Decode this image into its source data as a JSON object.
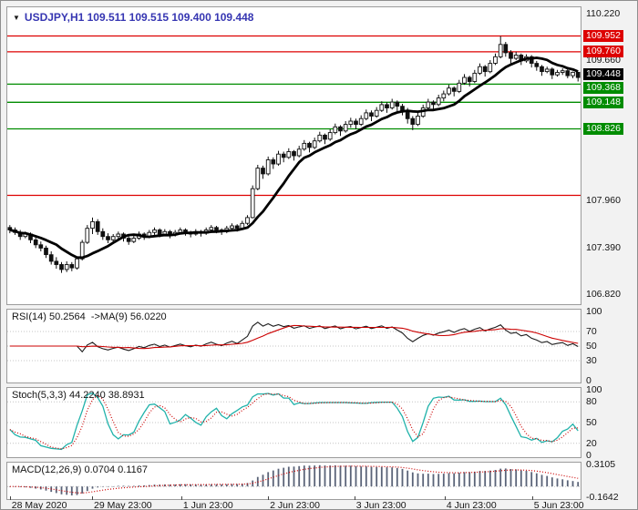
{
  "window": {
    "bg": "#f2f2f2",
    "panel_bg": "#ffffff",
    "panel_border": "#9c9c9c"
  },
  "colors": {
    "resistance": "#dd0000",
    "support": "#008c00",
    "last_price_bg": "#000000",
    "candle": "#101010",
    "ma_line": "#000000",
    "rsi_line": "#1c1c1c",
    "rsi_ma_line": "#cc0000",
    "stoch_k_line": "#20b2aa",
    "stoch_d_line": "#cc0000",
    "macd_hist": "#5a6378",
    "macd_signal": "#cc0000",
    "header_text": "#3636b2",
    "axis_text": "#141414"
  },
  "header": {
    "dropdown_icon": "▼",
    "symbol_line": "USDJPY,H1 109.511 109.515 109.400 109.448"
  },
  "main_chart": {
    "ylim": [
      106.7,
      110.3
    ],
    "plain_labels": [
      {
        "text": "110.220",
        "price": 110.22
      },
      {
        "text": "109.660",
        "price": 109.66
      },
      {
        "text": "107.960",
        "price": 107.96
      },
      {
        "text": "107.390",
        "price": 107.39
      },
      {
        "text": "106.820",
        "price": 106.82
      }
    ],
    "badges": [
      {
        "text": "109.952",
        "price": 109.952,
        "kind": "resistance"
      },
      {
        "text": "109.760",
        "price": 109.76,
        "kind": "resistance"
      },
      {
        "text": "109.448",
        "price": 109.448,
        "kind": "last",
        "dy": -4
      },
      {
        "text": "109.368",
        "price": 109.368,
        "kind": "support",
        "dy": 4
      },
      {
        "text": "109.148",
        "price": 109.148,
        "kind": "support"
      },
      {
        "text": "108.826",
        "price": 108.826,
        "kind": "support"
      }
    ],
    "levels": {
      "resistance": [
        109.952,
        109.76,
        108.02
      ],
      "support": [
        109.368,
        109.148,
        108.826
      ]
    }
  },
  "indicators": {
    "rsi": {
      "label": "RSI(14) 50.2564  ->MA(9) 56.0220",
      "period": 14,
      "ma_period": 9,
      "current": 50.2564,
      "ma_current": 56.022,
      "ticks": [
        100,
        70,
        50,
        30,
        0
      ],
      "grid": [
        70,
        50,
        30
      ],
      "ylim": [
        0,
        100
      ]
    },
    "stoch": {
      "label": "Stoch(5,3,3) 44.2240 38.8931",
      "k_current": 44.224,
      "d_current": 38.8931,
      "ticks": [
        100,
        80,
        50,
        20,
        0
      ],
      "grid": [
        80,
        50,
        20
      ],
      "ylim": [
        0,
        100
      ]
    },
    "macd": {
      "label": "MACD(12,26,9) 0.0704 0.1167",
      "macd_current": 0.0704,
      "signal_current": 0.1167,
      "ticks": [
        0.3105,
        -0.1642
      ],
      "tick_labels": [
        "0.3105",
        "-0.1642"
      ],
      "ylim": [
        -0.1642,
        0.3105
      ]
    }
  },
  "time_axis": {
    "labels": [
      {
        "text": "28 May 2020",
        "pos": 0.006
      },
      {
        "text": "29 May 23:00",
        "pos": 0.149
      },
      {
        "text": "1 Jun 23:00",
        "pos": 0.304
      },
      {
        "text": "2 Jun 23:00",
        "pos": 0.455
      },
      {
        "text": "3 Jun 23:00",
        "pos": 0.605
      },
      {
        "text": "4 Jun 23:00",
        "pos": 0.762
      },
      {
        "text": "5 Jun 23:00",
        "pos": 0.914
      }
    ]
  },
  "chart_data": [
    {
      "type": "candlestick",
      "title": "USDJPY,H1",
      "ylim": [
        106.7,
        110.3
      ],
      "ohlc": [
        [
          107.63,
          107.66,
          107.56,
          107.6
        ],
        [
          107.6,
          107.63,
          107.54,
          107.57
        ],
        [
          107.57,
          107.6,
          107.48,
          107.52
        ],
        [
          107.52,
          107.58,
          107.5,
          107.55
        ],
        [
          107.55,
          107.57,
          107.44,
          107.48
        ],
        [
          107.48,
          107.51,
          107.38,
          107.42
        ],
        [
          107.42,
          107.46,
          107.34,
          107.38
        ],
        [
          107.38,
          107.41,
          107.26,
          107.3
        ],
        [
          107.3,
          107.34,
          107.18,
          107.22
        ],
        [
          107.22,
          107.27,
          107.13,
          107.18
        ],
        [
          107.18,
          107.21,
          107.08,
          107.12
        ],
        [
          107.12,
          107.22,
          107.09,
          107.18
        ],
        [
          107.18,
          107.21,
          107.1,
          107.14
        ],
        [
          107.14,
          107.28,
          107.12,
          107.25
        ],
        [
          107.25,
          107.48,
          107.23,
          107.45
        ],
        [
          107.45,
          107.66,
          107.43,
          107.62
        ],
        [
          107.62,
          107.75,
          107.55,
          107.7
        ],
        [
          107.7,
          107.73,
          107.54,
          107.58
        ],
        [
          107.58,
          107.62,
          107.48,
          107.52
        ],
        [
          107.52,
          107.56,
          107.44,
          107.48
        ],
        [
          107.48,
          107.55,
          107.45,
          107.52
        ],
        [
          107.52,
          107.58,
          107.49,
          107.55
        ],
        [
          107.55,
          107.57,
          107.46,
          107.5
        ],
        [
          107.5,
          107.53,
          107.42,
          107.46
        ],
        [
          107.46,
          107.53,
          107.44,
          107.5
        ],
        [
          107.5,
          107.58,
          107.48,
          107.55
        ],
        [
          107.55,
          107.57,
          107.48,
          107.52
        ],
        [
          107.52,
          107.6,
          107.5,
          107.57
        ],
        [
          107.57,
          107.63,
          107.54,
          107.6
        ],
        [
          107.6,
          107.62,
          107.51,
          107.55
        ],
        [
          107.55,
          107.61,
          107.53,
          107.58
        ],
        [
          107.58,
          107.6,
          107.5,
          107.54
        ],
        [
          107.54,
          107.6,
          107.52,
          107.57
        ],
        [
          107.57,
          107.63,
          107.55,
          107.6
        ],
        [
          107.6,
          107.62,
          107.53,
          107.57
        ],
        [
          107.57,
          107.59,
          107.51,
          107.55
        ],
        [
          107.55,
          107.61,
          107.53,
          107.58
        ],
        [
          107.58,
          107.6,
          107.52,
          107.56
        ],
        [
          107.56,
          107.63,
          107.54,
          107.6
        ],
        [
          107.6,
          107.66,
          107.58,
          107.63
        ],
        [
          107.63,
          107.65,
          107.56,
          107.6
        ],
        [
          107.6,
          107.62,
          107.54,
          107.58
        ],
        [
          107.58,
          107.65,
          107.56,
          107.62
        ],
        [
          107.62,
          107.68,
          107.6,
          107.65
        ],
        [
          107.65,
          107.67,
          107.58,
          107.62
        ],
        [
          107.62,
          107.71,
          107.6,
          107.68
        ],
        [
          107.68,
          107.78,
          107.66,
          107.75
        ],
        [
          107.75,
          108.14,
          107.74,
          108.1
        ],
        [
          108.1,
          108.39,
          108.08,
          108.35
        ],
        [
          108.35,
          108.38,
          108.22,
          108.28
        ],
        [
          108.28,
          108.49,
          108.26,
          108.45
        ],
        [
          108.45,
          108.48,
          108.34,
          108.4
        ],
        [
          108.4,
          108.56,
          108.38,
          108.52
        ],
        [
          108.52,
          108.55,
          108.42,
          108.48
        ],
        [
          108.48,
          108.59,
          108.46,
          108.55
        ],
        [
          108.55,
          108.57,
          108.44,
          108.5
        ],
        [
          108.5,
          108.62,
          108.48,
          108.58
        ],
        [
          108.58,
          108.69,
          108.56,
          108.65
        ],
        [
          108.65,
          108.67,
          108.54,
          108.6
        ],
        [
          108.6,
          108.72,
          108.58,
          108.68
        ],
        [
          108.68,
          108.79,
          108.66,
          108.75
        ],
        [
          108.75,
          108.77,
          108.64,
          108.7
        ],
        [
          108.7,
          108.82,
          108.68,
          108.78
        ],
        [
          108.78,
          108.89,
          108.76,
          108.85
        ],
        [
          108.85,
          108.87,
          108.74,
          108.8
        ],
        [
          108.8,
          108.92,
          108.78,
          108.88
        ],
        [
          108.88,
          108.96,
          108.84,
          108.92
        ],
        [
          108.92,
          108.95,
          108.82,
          108.88
        ],
        [
          108.88,
          108.99,
          108.86,
          108.95
        ],
        [
          108.95,
          109.06,
          108.93,
          109.02
        ],
        [
          109.02,
          109.05,
          108.92,
          108.98
        ],
        [
          108.98,
          109.09,
          108.96,
          109.05
        ],
        [
          109.05,
          109.16,
          109.03,
          109.12
        ],
        [
          109.12,
          109.15,
          109.02,
          109.08
        ],
        [
          109.08,
          109.19,
          109.06,
          109.15
        ],
        [
          109.15,
          109.17,
          109.04,
          109.1
        ],
        [
          109.1,
          109.13,
          108.99,
          109.05
        ],
        [
          109.05,
          109.08,
          108.89,
          108.95
        ],
        [
          108.95,
          108.98,
          108.81,
          108.88
        ],
        [
          108.88,
          109.02,
          108.86,
          108.98
        ],
        [
          108.98,
          109.12,
          108.96,
          109.08
        ],
        [
          109.08,
          109.19,
          109.06,
          109.15
        ],
        [
          109.15,
          109.17,
          109.06,
          109.12
        ],
        [
          109.12,
          109.24,
          109.1,
          109.2
        ],
        [
          109.2,
          109.29,
          109.16,
          109.25
        ],
        [
          109.25,
          109.36,
          109.23,
          109.32
        ],
        [
          109.32,
          109.34,
          109.22,
          109.28
        ],
        [
          109.28,
          109.42,
          109.26,
          109.38
        ],
        [
          109.38,
          109.49,
          109.36,
          109.45
        ],
        [
          109.45,
          109.47,
          109.34,
          109.4
        ],
        [
          109.4,
          109.54,
          109.38,
          109.5
        ],
        [
          109.5,
          109.62,
          109.48,
          109.58
        ],
        [
          109.58,
          109.6,
          109.46,
          109.52
        ],
        [
          109.52,
          109.66,
          109.5,
          109.62
        ],
        [
          109.62,
          109.74,
          109.6,
          109.7
        ],
        [
          109.7,
          109.95,
          109.68,
          109.85
        ],
        [
          109.85,
          109.88,
          109.7,
          109.75
        ],
        [
          109.75,
          109.78,
          109.62,
          109.68
        ],
        [
          109.68,
          109.76,
          109.66,
          109.72
        ],
        [
          109.72,
          109.74,
          109.6,
          109.65
        ],
        [
          109.65,
          109.73,
          109.63,
          109.7
        ],
        [
          109.7,
          109.72,
          109.57,
          109.62
        ],
        [
          109.62,
          109.65,
          109.53,
          109.58
        ],
        [
          109.58,
          109.6,
          109.47,
          109.52
        ],
        [
          109.52,
          109.58,
          109.5,
          109.55
        ],
        [
          109.55,
          109.57,
          109.43,
          109.48
        ],
        [
          109.48,
          109.54,
          109.46,
          109.51
        ],
        [
          109.51,
          109.56,
          109.48,
          109.53
        ],
        [
          109.53,
          109.55,
          109.44,
          109.47
        ],
        [
          109.47,
          109.52,
          109.44,
          109.511
        ],
        [
          109.511,
          109.515,
          109.4,
          109.448
        ]
      ]
    },
    {
      "type": "line",
      "title": "RSI(14) with MA(9)",
      "ylim": [
        0,
        100
      ],
      "current_values": [
        50.2564,
        56.022
      ],
      "derived_from": "ohlc"
    },
    {
      "type": "line",
      "title": "Stochastic(5,3,3)",
      "ylim": [
        0,
        100
      ],
      "current_values": [
        44.224,
        38.8931
      ],
      "derived_from": "ohlc"
    },
    {
      "type": "bar",
      "title": "MACD(12,26,9)",
      "ylim": [
        -0.1642,
        0.3105
      ],
      "current_values": [
        0.0704,
        0.1167
      ],
      "derived_from": "ohlc"
    }
  ]
}
